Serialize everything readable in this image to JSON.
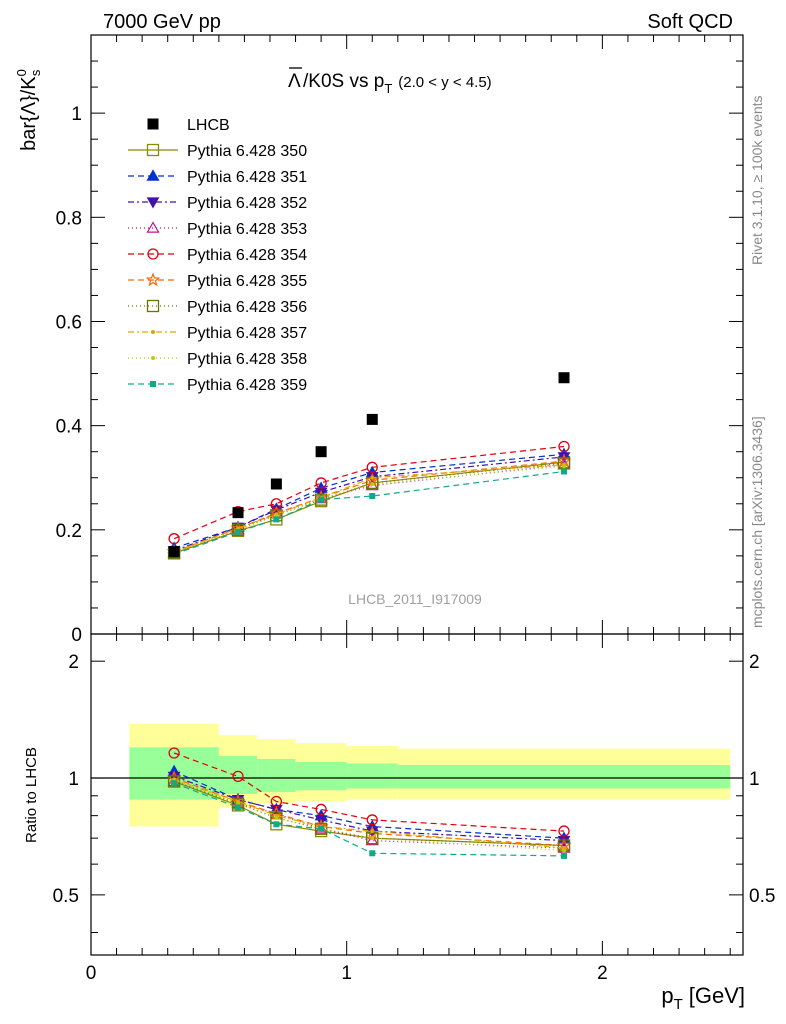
{
  "header": {
    "left": "7000 GeV pp",
    "right": "Soft QCD"
  },
  "side_labels": {
    "rivet": "Rivet 3.1.10, ≥ 100k events",
    "mcplots": "mcplots.cern.ch [arXiv:1306.3436]"
  },
  "watermark": "LHCB_2011_I917009",
  "chart_data": [
    {
      "type": "scatter",
      "panel": "main",
      "title": "Λ̅/K0S vs p_T (2.0 < y < 4.5)",
      "title_main": "/K0S vs p",
      "title_bar_symbol": "Λ",
      "title_sub": "T",
      "title_range": "(2.0 < y < 4.5)",
      "ylabel": "bar{Λ}/K⁰ₛ",
      "ylabel_main": "bar{Λ}/K",
      "ylabel_sup": "0",
      "ylabel_sub": "s",
      "xlim": [
        0,
        2.55
      ],
      "ylim": [
        0,
        1.15
      ],
      "yticks": [
        0,
        0.2,
        0.4,
        0.6,
        0.8,
        1
      ],
      "ytick_labels": [
        "0",
        "0.2",
        "0.4",
        "0.6",
        "0.8",
        "1"
      ],
      "grid": false,
      "legend_position": "top-left",
      "x": [
        0.325,
        0.575,
        0.725,
        0.9,
        1.1,
        1.85
      ],
      "series": [
        {
          "name": "LHCB",
          "color": "#000000",
          "marker": "square-filled",
          "dash": "none",
          "values": [
            0.158,
            0.233,
            0.288,
            0.35,
            0.412,
            0.492
          ]
        },
        {
          "name": "Pythia 6.428 350",
          "color": "#8b8b00",
          "marker": "square-open",
          "dash": "solid",
          "values": [
            0.155,
            0.198,
            0.22,
            0.255,
            0.29,
            0.33
          ]
        },
        {
          "name": "Pythia 6.428 351",
          "color": "#0033cc",
          "marker": "triangle-up-filled",
          "dash": "6,4",
          "values": [
            0.165,
            0.205,
            0.24,
            0.28,
            0.31,
            0.345
          ]
        },
        {
          "name": "Pythia 6.428 352",
          "color": "#4411aa",
          "marker": "triangle-down-filled",
          "dash": "6,3,2,3",
          "values": [
            0.16,
            0.205,
            0.238,
            0.272,
            0.302,
            0.34
          ]
        },
        {
          "name": "Pythia 6.428 353",
          "color": "#cc1188",
          "marker": "triangle-up-open",
          "dash": "1,3",
          "values": [
            0.155,
            0.2,
            0.232,
            0.26,
            0.285,
            0.325
          ]
        },
        {
          "name": "Pythia 6.428 354",
          "color": "#dd0011",
          "marker": "circle-open",
          "dash": "6,4",
          "values": [
            0.183,
            0.235,
            0.25,
            0.29,
            0.32,
            0.36
          ]
        },
        {
          "name": "Pythia 6.428 355",
          "color": "#ff6600",
          "marker": "star-open",
          "dash": "6,4",
          "values": [
            0.158,
            0.203,
            0.232,
            0.262,
            0.295,
            0.332
          ]
        },
        {
          "name": "Pythia 6.428 356",
          "color": "#667700",
          "marker": "square-open",
          "dash": "1,3",
          "values": [
            0.155,
            0.2,
            0.228,
            0.258,
            0.29,
            0.328
          ]
        },
        {
          "name": "Pythia 6.428 357",
          "color": "#ddaa00",
          "marker": "dot",
          "dash": "6,3,2,3",
          "values": [
            0.157,
            0.203,
            0.23,
            0.262,
            0.3,
            0.325
          ]
        },
        {
          "name": "Pythia 6.428 358",
          "color": "#bbcc00",
          "marker": "dot",
          "dash": "1,3",
          "values": [
            0.156,
            0.2,
            0.227,
            0.26,
            0.288,
            0.322
          ]
        },
        {
          "name": "Pythia 6.428 359",
          "color": "#11aa88",
          "marker": "square-filled-small",
          "dash": "6,4",
          "values": [
            0.153,
            0.196,
            0.22,
            0.258,
            0.265,
            0.312
          ]
        }
      ]
    },
    {
      "type": "scatter",
      "panel": "ratio",
      "ylabel": "Ratio to LHCB",
      "xlabel": "p_T [GeV]",
      "xlabel_main": "p",
      "xlabel_sub": "T",
      "xlabel_unit": "[GeV]",
      "xlim": [
        0,
        2.55
      ],
      "ylim": [
        0.35,
        2.35
      ],
      "xticks": [
        0,
        1,
        2
      ],
      "xtick_labels": [
        "0",
        "1",
        "2"
      ],
      "yticks": [
        0.5,
        1,
        2
      ],
      "ytick_labels": [
        "0.5",
        "1",
        "2"
      ],
      "bands": [
        {
          "x_low": 0.15,
          "x_high": 0.5,
          "inner": [
            0.88,
            1.2
          ],
          "outer": [
            0.75,
            1.38
          ]
        },
        {
          "x_low": 0.5,
          "x_high": 0.65,
          "inner": [
            0.91,
            1.14
          ],
          "outer": [
            0.84,
            1.29
          ]
        },
        {
          "x_low": 0.65,
          "x_high": 0.8,
          "inner": [
            0.92,
            1.12
          ],
          "outer": [
            0.86,
            1.26
          ]
        },
        {
          "x_low": 0.8,
          "x_high": 1.0,
          "inner": [
            0.93,
            1.1
          ],
          "outer": [
            0.87,
            1.23
          ]
        },
        {
          "x_low": 1.0,
          "x_high": 1.2,
          "inner": [
            0.94,
            1.09
          ],
          "outer": [
            0.88,
            1.21
          ]
        },
        {
          "x_low": 1.2,
          "x_high": 2.5,
          "inner": [
            0.94,
            1.08
          ],
          "outer": [
            0.88,
            1.19
          ]
        }
      ],
      "band_colors": {
        "inner": "#99ff99",
        "outer": "#ffff99"
      },
      "x": [
        0.325,
        0.575,
        0.725,
        0.9,
        1.1,
        1.85
      ],
      "series": [
        {
          "name": "Pythia 6.428 350",
          "values": [
            0.98,
            0.85,
            0.76,
            0.73,
            0.7,
            0.67
          ]
        },
        {
          "name": "Pythia 6.428 351",
          "values": [
            1.04,
            0.88,
            0.83,
            0.8,
            0.75,
            0.7
          ]
        },
        {
          "name": "Pythia 6.428 352",
          "values": [
            1.01,
            0.88,
            0.83,
            0.78,
            0.73,
            0.69
          ]
        },
        {
          "name": "Pythia 6.428 353",
          "values": [
            0.98,
            0.86,
            0.81,
            0.74,
            0.69,
            0.66
          ]
        },
        {
          "name": "Pythia 6.428 354",
          "values": [
            1.16,
            1.01,
            0.87,
            0.83,
            0.78,
            0.73
          ]
        },
        {
          "name": "Pythia 6.428 355",
          "values": [
            1.0,
            0.87,
            0.81,
            0.75,
            0.72,
            0.67
          ]
        },
        {
          "name": "Pythia 6.428 356",
          "values": [
            0.98,
            0.86,
            0.79,
            0.74,
            0.7,
            0.67
          ]
        },
        {
          "name": "Pythia 6.428 357",
          "values": [
            0.99,
            0.87,
            0.8,
            0.75,
            0.73,
            0.66
          ]
        },
        {
          "name": "Pythia 6.428 358",
          "values": [
            0.99,
            0.86,
            0.79,
            0.74,
            0.7,
            0.65
          ]
        },
        {
          "name": "Pythia 6.428 359",
          "values": [
            0.97,
            0.84,
            0.76,
            0.74,
            0.64,
            0.63
          ]
        }
      ]
    }
  ]
}
